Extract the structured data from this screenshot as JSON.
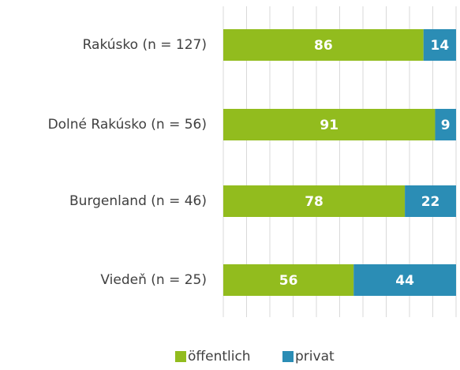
{
  "chart_data": {
    "type": "stacked-barh",
    "categories": [
      "Rakúsko (n = 127)",
      "Dolné Rakúsko (n = 56)",
      "Burgenland (n = 46)",
      "Viedeň (n = 25)"
    ],
    "series": [
      {
        "name": "öffentlich",
        "color": "#92bc1e",
        "values": [
          86,
          91,
          78,
          56
        ]
      },
      {
        "name": "privat",
        "color": "#2b8db5",
        "values": [
          14,
          9,
          22,
          44
        ]
      }
    ],
    "xlim": [
      0,
      100
    ],
    "xticks": [
      0,
      10,
      20,
      30,
      40,
      50,
      60,
      70,
      80,
      90,
      100
    ],
    "grid": true,
    "legend": "bottom"
  }
}
